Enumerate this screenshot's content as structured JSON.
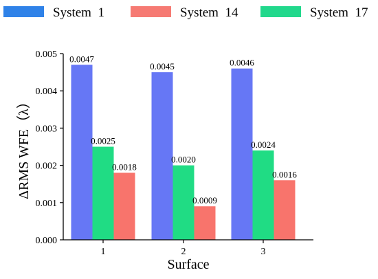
{
  "chart_data": {
    "type": "bar",
    "title": "",
    "xlabel": "Surface",
    "ylabel": "ΔRMS WFE（λ）",
    "categories": [
      "1",
      "2",
      "3"
    ],
    "series": [
      {
        "name": "System 1",
        "color": "#6677f5",
        "values": [
          0.0047,
          0.0045,
          0.0046
        ],
        "labels": [
          "0.0047",
          "0.0045",
          "0.0046"
        ]
      },
      {
        "name": "System 17",
        "color": "#20dc84",
        "values": [
          0.0025,
          0.002,
          0.0024
        ],
        "labels": [
          "0.0025",
          "0.0020",
          "0.0024"
        ]
      },
      {
        "name": "System 14",
        "color": "#f8746c",
        "values": [
          0.0018,
          0.0009,
          0.0016
        ],
        "labels": [
          "0.0018",
          "0.0009",
          "0.0016"
        ]
      }
    ],
    "legend": {
      "placement": "top",
      "entries": [
        {
          "name": "System  1",
          "color": "#2f82e8"
        },
        {
          "name": "System  14",
          "color": "#f67a73"
        },
        {
          "name": "System  17",
          "color": "#22d88c"
        }
      ]
    },
    "ylim": [
      0,
      0.005
    ],
    "yticks": [
      "0.000",
      "0.001",
      "0.002",
      "0.003",
      "0.004",
      "0.005"
    ],
    "grid": false
  }
}
